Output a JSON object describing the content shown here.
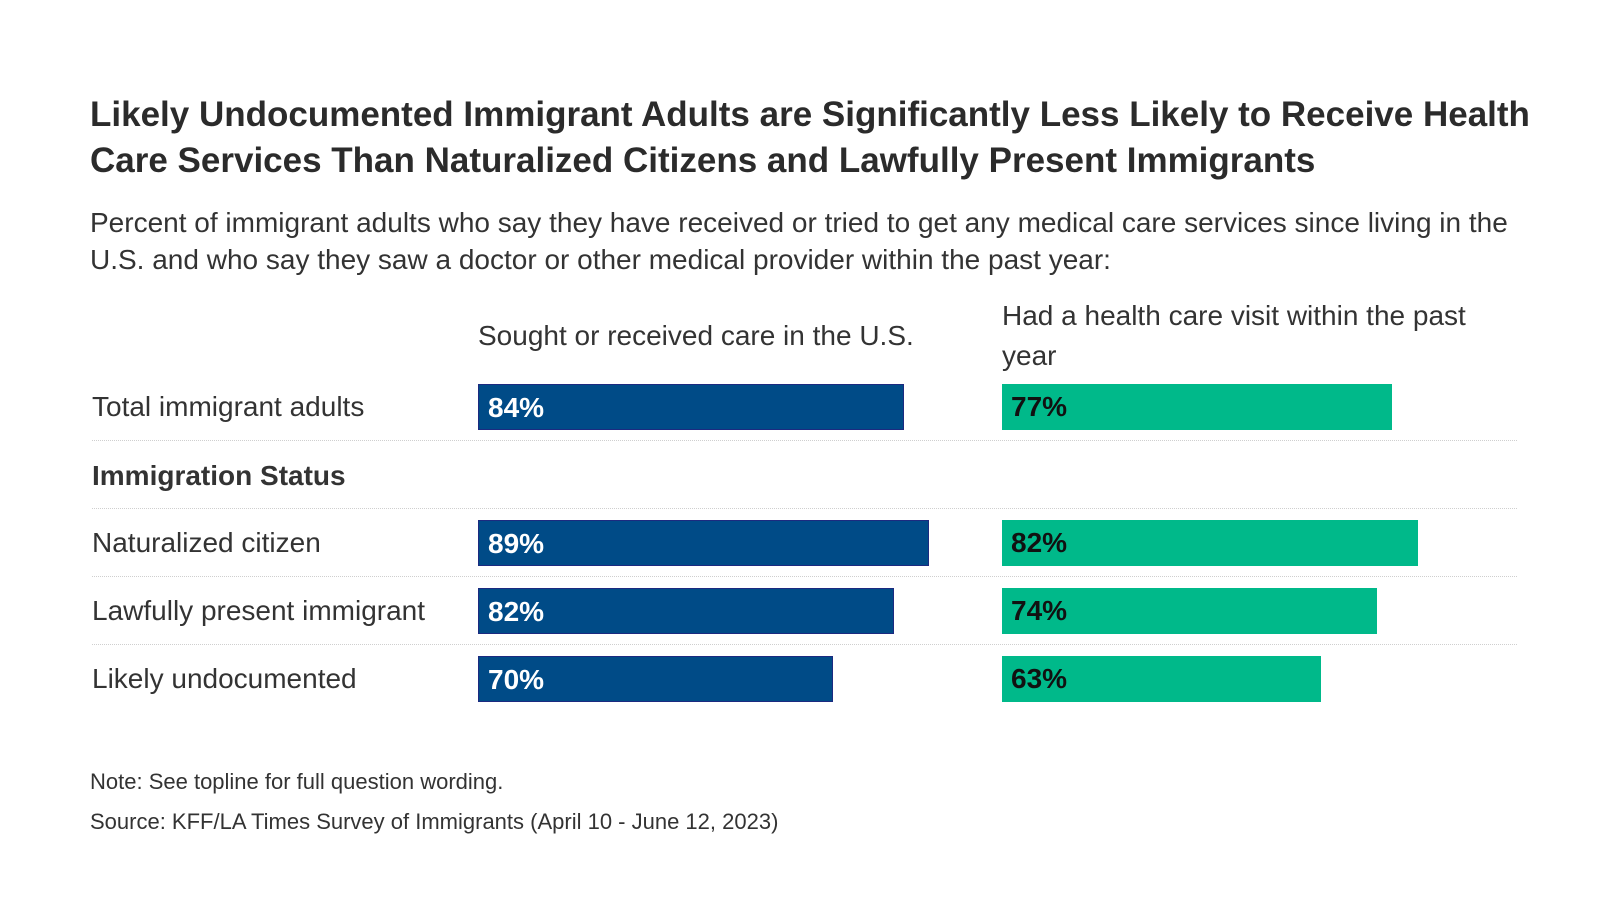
{
  "chart_data": {
    "type": "bar",
    "orientation": "horizontal",
    "title": "Likely Undocumented Immigrant Adults are Significantly Less Likely to Receive Health Care Services Than Naturalized Citizens and Lawfully Present Immigrants",
    "subtitle": "Percent of immigrant adults who say they have received or tried to get any medical care services since living in the U.S. and who say they saw a doctor or other medical provider within the past year:",
    "rows": [
      {
        "label": "Total immigrant adults",
        "type": "data"
      },
      {
        "label": "Immigration Status",
        "type": "group"
      },
      {
        "label": "Naturalized citizen",
        "type": "data"
      },
      {
        "label": "Lawfully present immigrant",
        "type": "data"
      },
      {
        "label": "Likely undocumented",
        "type": "data"
      }
    ],
    "categories": [
      "Total immigrant adults",
      "Naturalized citizen",
      "Lawfully present immigrant",
      "Likely undocumented"
    ],
    "series": [
      {
        "name": "Sought or received care in the U.S.",
        "values": [
          84,
          89,
          82,
          70
        ],
        "labels": [
          "84%",
          "89%",
          "82%",
          "70%"
        ],
        "color": "#004b87",
        "label_color": "#ffffff"
      },
      {
        "name": "Had a health care visit within the past year",
        "values": [
          77,
          82,
          74,
          63
        ],
        "labels": [
          "77%",
          "82%",
          "74%",
          "63%"
        ],
        "color": "#00b98a",
        "label_color": "#111111"
      }
    ],
    "xlim": [
      0,
      100
    ],
    "grid": false,
    "note": "Note: See topline for full question wording.",
    "source": "Source: KFF/LA Times Survey of Immigrants (April 10 - June 12, 2023)"
  }
}
